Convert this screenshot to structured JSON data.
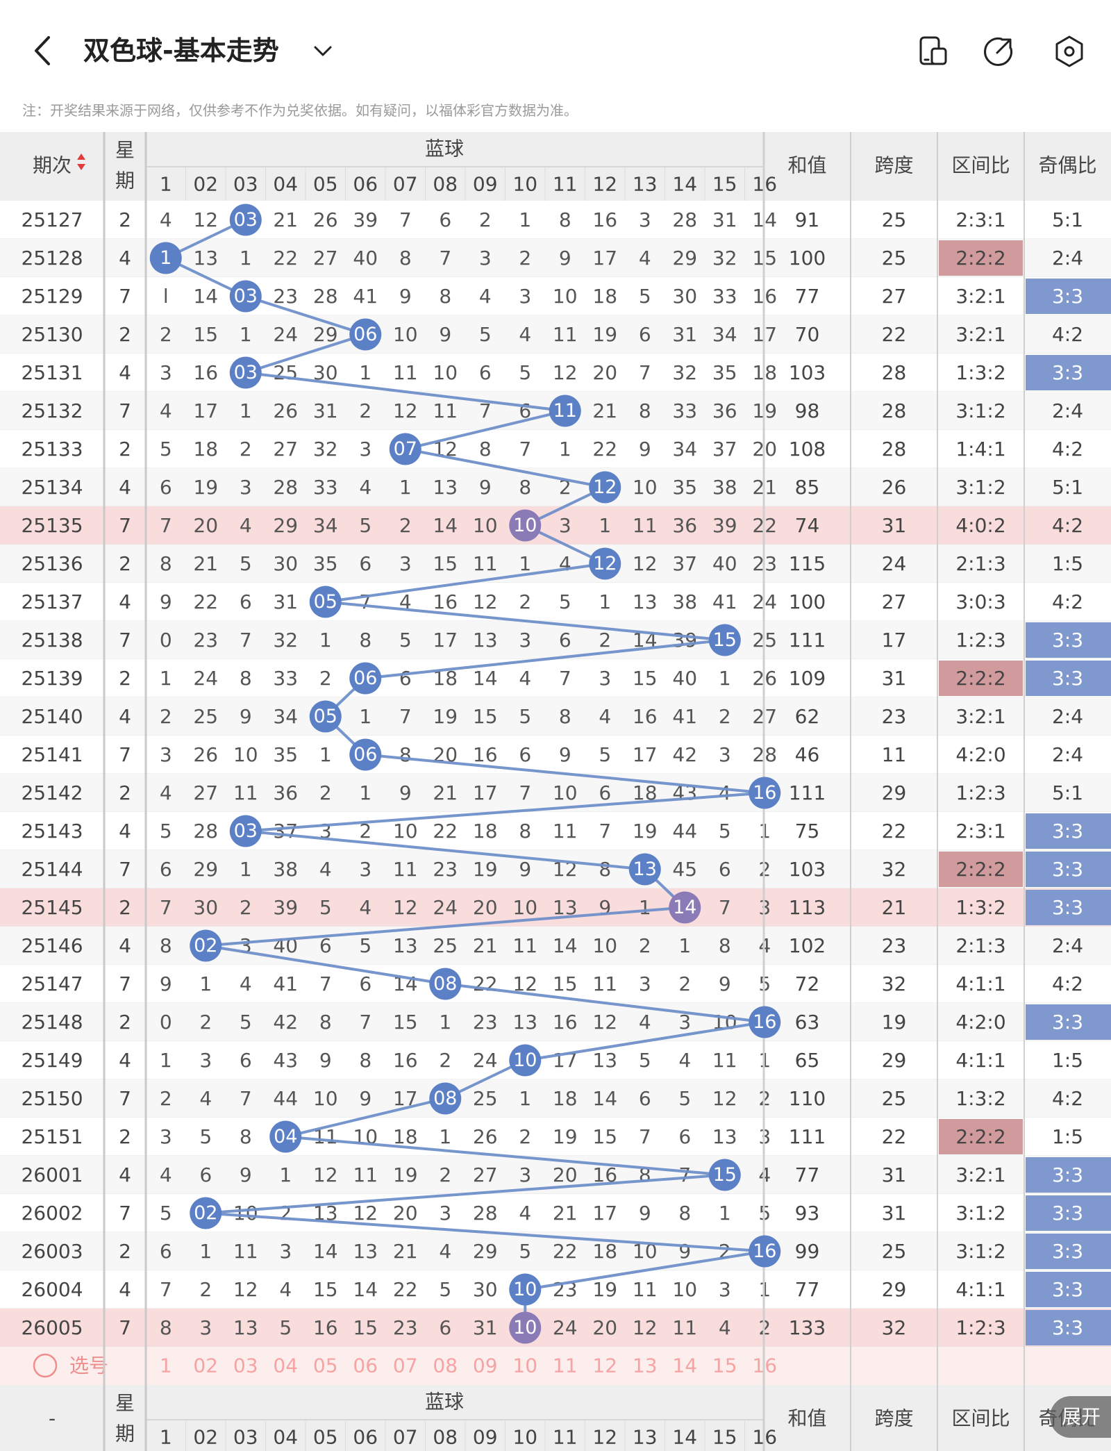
{
  "header": {
    "title": "双色球-基本走势",
    "note": "注：开奖结果来源于网络，仅供参考不作为兑奖依据。如有疑问，以福体彩官方数据为准。"
  },
  "table": {
    "group_label": "蓝球",
    "period_label": "期次",
    "weekday_label_top": "星",
    "weekday_label_bottom": "期",
    "sum_label": "和值",
    "span_label": "跨度",
    "zone_label": "区间比",
    "oddeven_label": "奇偶比",
    "columns": [
      "1",
      "02",
      "03",
      "04",
      "05",
      "06",
      "07",
      "08",
      "09",
      "10",
      "11",
      "12",
      "13",
      "14",
      "15",
      "16"
    ],
    "footer_period": "-",
    "select_label": "选号",
    "expand_label": "展开",
    "rows": [
      {
        "period": "25127",
        "week": "2",
        "cells": [
          "4",
          "12",
          "03",
          "21",
          "26",
          "39",
          "7",
          "6",
          "2",
          "1",
          "8",
          "16",
          "3",
          "28",
          "31",
          "14"
        ],
        "hit": 3,
        "sum": "91",
        "span": "25",
        "zone": "2:3:1",
        "oe": "5:1"
      },
      {
        "period": "25128",
        "week": "4",
        "cells": [
          "1",
          "13",
          "1",
          "22",
          "27",
          "40",
          "8",
          "7",
          "3",
          "2",
          "9",
          "17",
          "4",
          "29",
          "32",
          "15"
        ],
        "hit": 1,
        "sum": "100",
        "span": "25",
        "zone": "2:2:2",
        "oe": "2:4",
        "zone_hl": true
      },
      {
        "period": "25129",
        "week": "7",
        "cells": [
          "l",
          "14",
          "03",
          "23",
          "28",
          "41",
          "9",
          "8",
          "4",
          "3",
          "10",
          "18",
          "5",
          "30",
          "33",
          "16"
        ],
        "hit": 3,
        "sum": "77",
        "span": "27",
        "zone": "3:2:1",
        "oe": "3:3",
        "oe_hl": true
      },
      {
        "period": "25130",
        "week": "2",
        "cells": [
          "2",
          "15",
          "1",
          "24",
          "29",
          "06",
          "10",
          "9",
          "5",
          "4",
          "11",
          "19",
          "6",
          "31",
          "34",
          "17"
        ],
        "hit": 6,
        "sum": "70",
        "span": "22",
        "zone": "3:2:1",
        "oe": "4:2"
      },
      {
        "period": "25131",
        "week": "4",
        "cells": [
          "3",
          "16",
          "03",
          "25",
          "30",
          "1",
          "11",
          "10",
          "6",
          "5",
          "12",
          "20",
          "7",
          "32",
          "35",
          "18"
        ],
        "hit": 3,
        "sum": "103",
        "span": "28",
        "zone": "1:3:2",
        "oe": "3:3",
        "oe_hl": true
      },
      {
        "period": "25132",
        "week": "7",
        "cells": [
          "4",
          "17",
          "1",
          "26",
          "31",
          "2",
          "12",
          "11",
          "7",
          "6",
          "11",
          "21",
          "8",
          "33",
          "36",
          "19"
        ],
        "hit": 11,
        "sum": "98",
        "span": "28",
        "zone": "3:1:2",
        "oe": "2:4"
      },
      {
        "period": "25133",
        "week": "2",
        "cells": [
          "5",
          "18",
          "2",
          "27",
          "32",
          "3",
          "07",
          "12",
          "8",
          "7",
          "1",
          "22",
          "9",
          "34",
          "37",
          "20"
        ],
        "hit": 7,
        "sum": "108",
        "span": "28",
        "zone": "1:4:1",
        "oe": "4:2"
      },
      {
        "period": "25134",
        "week": "4",
        "cells": [
          "6",
          "19",
          "3",
          "28",
          "33",
          "4",
          "1",
          "13",
          "9",
          "8",
          "2",
          "12",
          "10",
          "35",
          "38",
          "21"
        ],
        "hit": 12,
        "sum": "85",
        "span": "26",
        "zone": "3:1:2",
        "oe": "5:1"
      },
      {
        "period": "25135",
        "week": "7",
        "cells": [
          "7",
          "20",
          "4",
          "29",
          "34",
          "5",
          "2",
          "14",
          "10",
          "10",
          "3",
          "1",
          "11",
          "36",
          "39",
          "22"
        ],
        "hit": 10,
        "sum": "74",
        "span": "31",
        "zone": "4:0:2",
        "oe": "4:2",
        "row_hl": true
      },
      {
        "period": "25136",
        "week": "2",
        "cells": [
          "8",
          "21",
          "5",
          "30",
          "35",
          "6",
          "3",
          "15",
          "11",
          "1",
          "4",
          "12",
          "12",
          "37",
          "40",
          "23"
        ],
        "hit": 12,
        "sum": "115",
        "span": "24",
        "zone": "2:1:3",
        "oe": "1:5"
      },
      {
        "period": "25137",
        "week": "4",
        "cells": [
          "9",
          "22",
          "6",
          "31",
          "05",
          "7",
          "4",
          "16",
          "12",
          "2",
          "5",
          "1",
          "13",
          "38",
          "41",
          "24"
        ],
        "hit": 5,
        "sum": "100",
        "span": "27",
        "zone": "3:0:3",
        "oe": "4:2"
      },
      {
        "period": "25138",
        "week": "7",
        "cells": [
          "0",
          "23",
          "7",
          "32",
          "1",
          "8",
          "5",
          "17",
          "13",
          "3",
          "6",
          "2",
          "14",
          "39",
          "15",
          "25"
        ],
        "hit": 15,
        "sum": "111",
        "span": "17",
        "zone": "1:2:3",
        "oe": "3:3",
        "oe_hl": true
      },
      {
        "period": "25139",
        "week": "2",
        "cells": [
          "1",
          "24",
          "8",
          "33",
          "2",
          "06",
          "6",
          "18",
          "14",
          "4",
          "7",
          "3",
          "15",
          "40",
          "1",
          "26"
        ],
        "hit": 6,
        "sum": "109",
        "span": "31",
        "zone": "2:2:2",
        "oe": "3:3",
        "zone_hl": true,
        "oe_hl": true
      },
      {
        "period": "25140",
        "week": "4",
        "cells": [
          "2",
          "25",
          "9",
          "34",
          "05",
          "1",
          "7",
          "19",
          "15",
          "5",
          "8",
          "4",
          "16",
          "41",
          "2",
          "27"
        ],
        "hit": 5,
        "sum": "62",
        "span": "23",
        "zone": "3:2:1",
        "oe": "2:4"
      },
      {
        "period": "25141",
        "week": "7",
        "cells": [
          "3",
          "26",
          "10",
          "35",
          "1",
          "06",
          "8",
          "20",
          "16",
          "6",
          "9",
          "5",
          "17",
          "42",
          "3",
          "28"
        ],
        "hit": 6,
        "sum": "46",
        "span": "11",
        "zone": "4:2:0",
        "oe": "2:4"
      },
      {
        "period": "25142",
        "week": "2",
        "cells": [
          "4",
          "27",
          "11",
          "36",
          "2",
          "1",
          "9",
          "21",
          "17",
          "7",
          "10",
          "6",
          "18",
          "43",
          "4",
          "16"
        ],
        "hit": 16,
        "sum": "111",
        "span": "29",
        "zone": "1:2:3",
        "oe": "5:1"
      },
      {
        "period": "25143",
        "week": "4",
        "cells": [
          "5",
          "28",
          "03",
          "37",
          "3",
          "2",
          "10",
          "22",
          "18",
          "8",
          "11",
          "7",
          "19",
          "44",
          "5",
          "1"
        ],
        "hit": 3,
        "sum": "75",
        "span": "22",
        "zone": "2:3:1",
        "oe": "3:3",
        "oe_hl": true
      },
      {
        "period": "25144",
        "week": "7",
        "cells": [
          "6",
          "29",
          "1",
          "38",
          "4",
          "3",
          "11",
          "23",
          "19",
          "9",
          "12",
          "8",
          "13",
          "45",
          "6",
          "2"
        ],
        "hit": 13,
        "sum": "103",
        "span": "32",
        "zone": "2:2:2",
        "oe": "3:3",
        "zone_hl": true,
        "oe_hl": true
      },
      {
        "period": "25145",
        "week": "2",
        "cells": [
          "7",
          "30",
          "2",
          "39",
          "5",
          "4",
          "12",
          "24",
          "20",
          "10",
          "13",
          "9",
          "1",
          "14",
          "7",
          "3"
        ],
        "hit": 14,
        "sum": "113",
        "span": "21",
        "zone": "1:3:2",
        "oe": "3:3",
        "oe_hl": true,
        "row_hl": true
      },
      {
        "period": "25146",
        "week": "4",
        "cells": [
          "8",
          "02",
          "3",
          "40",
          "6",
          "5",
          "13",
          "25",
          "21",
          "11",
          "14",
          "10",
          "2",
          "1",
          "8",
          "4"
        ],
        "hit": 2,
        "sum": "102",
        "span": "23",
        "zone": "2:1:3",
        "oe": "2:4"
      },
      {
        "period": "25147",
        "week": "7",
        "cells": [
          "9",
          "1",
          "4",
          "41",
          "7",
          "6",
          "14",
          "08",
          "22",
          "12",
          "15",
          "11",
          "3",
          "2",
          "9",
          "5"
        ],
        "hit": 8,
        "sum": "72",
        "span": "32",
        "zone": "4:1:1",
        "oe": "4:2"
      },
      {
        "period": "25148",
        "week": "2",
        "cells": [
          "0",
          "2",
          "5",
          "42",
          "8",
          "7",
          "15",
          "1",
          "23",
          "13",
          "16",
          "12",
          "4",
          "3",
          "10",
          "16"
        ],
        "hit": 16,
        "sum": "63",
        "span": "19",
        "zone": "4:2:0",
        "oe": "3:3",
        "oe_hl": true
      },
      {
        "period": "25149",
        "week": "4",
        "cells": [
          "1",
          "3",
          "6",
          "43",
          "9",
          "8",
          "16",
          "2",
          "24",
          "10",
          "17",
          "13",
          "5",
          "4",
          "11",
          "1"
        ],
        "hit": 10,
        "sum": "65",
        "span": "29",
        "zone": "4:1:1",
        "oe": "1:5"
      },
      {
        "period": "25150",
        "week": "7",
        "cells": [
          "2",
          "4",
          "7",
          "44",
          "10",
          "9",
          "17",
          "08",
          "25",
          "1",
          "18",
          "14",
          "6",
          "5",
          "12",
          "2"
        ],
        "hit": 8,
        "sum": "110",
        "span": "25",
        "zone": "1:3:2",
        "oe": "4:2"
      },
      {
        "period": "25151",
        "week": "2",
        "cells": [
          "3",
          "5",
          "8",
          "04",
          "11",
          "10",
          "18",
          "1",
          "26",
          "2",
          "19",
          "15",
          "7",
          "6",
          "13",
          "3"
        ],
        "hit": 4,
        "sum": "111",
        "span": "22",
        "zone": "2:2:2",
        "oe": "1:5",
        "zone_hl": true
      },
      {
        "period": "26001",
        "week": "4",
        "cells": [
          "4",
          "6",
          "9",
          "1",
          "12",
          "11",
          "19",
          "2",
          "27",
          "3",
          "20",
          "16",
          "8",
          "7",
          "15",
          "4"
        ],
        "hit": 15,
        "sum": "77",
        "span": "31",
        "zone": "3:2:1",
        "oe": "3:3",
        "oe_hl": true
      },
      {
        "period": "26002",
        "week": "7",
        "cells": [
          "5",
          "02",
          "10",
          "2",
          "13",
          "12",
          "20",
          "3",
          "28",
          "4",
          "21",
          "17",
          "9",
          "8",
          "1",
          "5"
        ],
        "hit": 2,
        "sum": "93",
        "span": "31",
        "zone": "3:1:2",
        "oe": "3:3",
        "oe_hl": true
      },
      {
        "period": "26003",
        "week": "2",
        "cells": [
          "6",
          "1",
          "11",
          "3",
          "14",
          "13",
          "21",
          "4",
          "29",
          "5",
          "22",
          "18",
          "10",
          "9",
          "2",
          "16"
        ],
        "hit": 16,
        "sum": "99",
        "span": "25",
        "zone": "3:1:2",
        "oe": "3:3",
        "oe_hl": true
      },
      {
        "period": "26004",
        "week": "4",
        "cells": [
          "7",
          "2",
          "12",
          "4",
          "15",
          "14",
          "22",
          "5",
          "30",
          "10",
          "23",
          "19",
          "11",
          "10",
          "3",
          "1"
        ],
        "hit": 10,
        "sum": "77",
        "span": "29",
        "zone": "4:1:1",
        "oe": "3:3",
        "oe_hl": true
      },
      {
        "period": "26005",
        "week": "7",
        "cells": [
          "8",
          "3",
          "13",
          "5",
          "16",
          "15",
          "23",
          "6",
          "31",
          "10",
          "24",
          "20",
          "12",
          "11",
          "4",
          "2"
        ],
        "hit": 10,
        "sum": "133",
        "span": "32",
        "zone": "1:2:3",
        "oe": "3:3",
        "oe_hl": true,
        "row_hl": true
      }
    ]
  },
  "colors": {
    "ball": "#5b80c6",
    "ball_hl": "#8a7ab5",
    "line": "#6f8fc9",
    "row_hl": "#f9dcdc",
    "zone_hl": "#d19a9c",
    "oe_hl": "#7f99cf",
    "header_bg": "#eeeeee"
  }
}
